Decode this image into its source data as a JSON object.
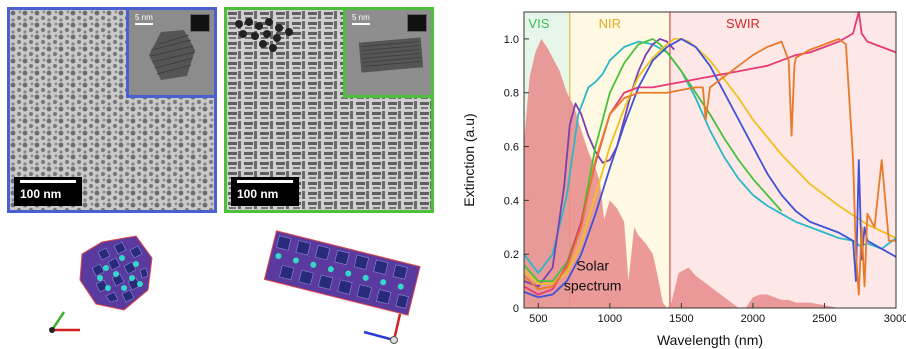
{
  "panels": {
    "left_tem": {
      "scale_main": "100 nm",
      "scale_inset": "5 nm",
      "border_color": "#4a5fd0"
    },
    "right_tem": {
      "scale_main": "100 nm",
      "scale_inset": "5 nm",
      "border_color": "#4cc03a"
    }
  },
  "chart_data": {
    "type": "line",
    "xlabel": "Wavelength (nm)",
    "ylabel": "Extinction (a.u)",
    "xlim": [
      400,
      3000
    ],
    "ylim": [
      0,
      1.1
    ],
    "x_ticks": [
      500,
      1000,
      1500,
      2000,
      2500,
      3000
    ],
    "y_ticks": [
      0,
      0.2,
      0.4,
      0.6,
      0.8,
      1.0
    ],
    "regions": [
      {
        "label": "VIS",
        "x_range": [
          400,
          720
        ],
        "fill": "#e6f7ea",
        "text_color": "#3cba55"
      },
      {
        "label": "NIR",
        "x_range": [
          720,
          1420
        ],
        "fill": "#fff8e2",
        "text_color": "#e0b020"
      },
      {
        "label": "SWIR",
        "x_range": [
          1420,
          3000
        ],
        "fill": "#fde7e7",
        "text_color": "#d12a2a"
      }
    ],
    "annotation": {
      "text_line1": "Solar",
      "text_line2": "spectrum",
      "color": "#c0282e",
      "x": 880,
      "y": 0.08
    },
    "solar_spectrum": {
      "color": "#e88a8a",
      "x": [
        400,
        440,
        480,
        520,
        560,
        600,
        650,
        700,
        750,
        800,
        850,
        900,
        930,
        960,
        1000,
        1050,
        1100,
        1130,
        1170,
        1200,
        1250,
        1300,
        1330,
        1370,
        1400,
        1430,
        1480,
        1550,
        1600,
        1650,
        1700,
        1750,
        1800,
        1850,
        1900,
        1950,
        2000,
        2050,
        2100,
        2150,
        2200,
        2250,
        2300,
        2400,
        2500,
        2600
      ],
      "y": [
        0.62,
        0.86,
        0.95,
        1.0,
        0.97,
        0.93,
        0.88,
        0.8,
        0.75,
        0.66,
        0.58,
        0.52,
        0.47,
        0.33,
        0.4,
        0.37,
        0.32,
        0.1,
        0.3,
        0.27,
        0.24,
        0.2,
        0.13,
        0.02,
        0.0,
        0.02,
        0.13,
        0.15,
        0.12,
        0.1,
        0.08,
        0.06,
        0.04,
        0.02,
        0.0,
        0.0,
        0.04,
        0.05,
        0.05,
        0.04,
        0.03,
        0.03,
        0.02,
        0.02,
        0.01,
        0.0
      ]
    },
    "series": [
      {
        "color": "#2ab8c8",
        "x": [
          400,
          500,
          600,
          700,
          780,
          850,
          900,
          950,
          1000,
          1100,
          1200,
          1300,
          1400,
          1500,
          1600,
          1700,
          1800,
          1900,
          2000,
          2100,
          2200,
          2300,
          2400,
          2500,
          2600,
          2700,
          2750,
          2800,
          2900,
          3000
        ],
        "y": [
          0.2,
          0.13,
          0.2,
          0.42,
          0.72,
          0.82,
          0.84,
          0.87,
          0.92,
          0.97,
          0.99,
          0.98,
          0.95,
          0.88,
          0.78,
          0.66,
          0.56,
          0.48,
          0.42,
          0.38,
          0.35,
          0.32,
          0.3,
          0.28,
          0.26,
          0.25,
          0.23,
          0.24,
          0.22,
          0.26
        ]
      },
      {
        "color": "#7a3fb0",
        "x": [
          400,
          500,
          600,
          680,
          720,
          760,
          800,
          850,
          900,
          950,
          1000,
          1050,
          1100,
          1150,
          1200,
          1250,
          1300,
          1350,
          1400,
          1450
        ],
        "y": [
          0.1,
          0.08,
          0.15,
          0.45,
          0.68,
          0.76,
          0.72,
          0.64,
          0.58,
          0.54,
          0.55,
          0.6,
          0.7,
          0.8,
          0.88,
          0.94,
          0.98,
          1.0,
          0.99,
          0.96
        ]
      },
      {
        "color": "#46c23a",
        "x": [
          400,
          500,
          600,
          700,
          800,
          900,
          1000,
          1100,
          1200,
          1300,
          1350,
          1400,
          1500,
          1600,
          1700,
          1800,
          1900,
          2000,
          2100,
          2200
        ],
        "y": [
          0.16,
          0.1,
          0.1,
          0.17,
          0.32,
          0.6,
          0.8,
          0.91,
          0.98,
          1.0,
          0.98,
          0.95,
          0.88,
          0.8,
          0.72,
          0.63,
          0.55,
          0.48,
          0.42,
          0.36
        ]
      },
      {
        "color": "#f0c020",
        "x": [
          400,
          500,
          600,
          700,
          800,
          900,
          1000,
          1100,
          1200,
          1300,
          1400,
          1450,
          1500,
          1550,
          1600,
          1700,
          1800,
          1900,
          2000,
          2200,
          2400,
          2600,
          2800,
          3000
        ],
        "y": [
          0.14,
          0.09,
          0.09,
          0.13,
          0.24,
          0.42,
          0.6,
          0.74,
          0.86,
          0.93,
          0.98,
          1.0,
          1.0,
          0.99,
          0.97,
          0.92,
          0.85,
          0.78,
          0.7,
          0.57,
          0.46,
          0.38,
          0.31,
          0.26
        ]
      },
      {
        "color": "#e63a78",
        "x": [
          400,
          500,
          600,
          700,
          800,
          900,
          1000,
          1100,
          1200,
          1300,
          1400,
          1500,
          1600,
          1700,
          1800,
          1900,
          2000,
          2100,
          2200,
          2300,
          2400,
          2500,
          2600,
          2700,
          2740,
          2760,
          2800,
          2900,
          3000
        ],
        "y": [
          0.08,
          0.05,
          0.07,
          0.16,
          0.32,
          0.54,
          0.72,
          0.8,
          0.82,
          0.82,
          0.83,
          0.84,
          0.85,
          0.86,
          0.87,
          0.88,
          0.89,
          0.9,
          0.92,
          0.94,
          0.95,
          0.97,
          0.99,
          1.02,
          1.1,
          1.02,
          0.99,
          0.97,
          0.95
        ]
      },
      {
        "color": "#4052d8",
        "x": [
          400,
          500,
          600,
          700,
          800,
          900,
          1000,
          1100,
          1200,
          1300,
          1400,
          1500,
          1600,
          1700,
          1800,
          1900,
          2000,
          2100,
          2200,
          2300,
          2400,
          2500,
          2600,
          2700,
          2720,
          2740,
          2760,
          2780,
          2800,
          2900,
          3000
        ],
        "y": [
          0.06,
          0.04,
          0.05,
          0.1,
          0.2,
          0.35,
          0.52,
          0.68,
          0.82,
          0.92,
          0.97,
          1.0,
          0.97,
          0.9,
          0.8,
          0.7,
          0.6,
          0.5,
          0.42,
          0.36,
          0.32,
          0.3,
          0.28,
          0.25,
          0.1,
          0.55,
          0.18,
          0.3,
          0.25,
          0.22,
          0.19
        ]
      },
      {
        "color": "#e87a2a",
        "x": [
          400,
          500,
          600,
          700,
          800,
          900,
          1000,
          1100,
          1200,
          1300,
          1400,
          1500,
          1600,
          1650,
          1670,
          1700,
          1800,
          1900,
          2000,
          2100,
          2200,
          2250,
          2270,
          2290,
          2300,
          2400,
          2500,
          2550,
          2600,
          2650,
          2700,
          2720,
          2740,
          2760,
          2780,
          2800,
          2850,
          2900,
          2950,
          3000
        ],
        "y": [
          0.12,
          0.07,
          0.08,
          0.15,
          0.3,
          0.55,
          0.72,
          0.78,
          0.8,
          0.8,
          0.8,
          0.81,
          0.82,
          0.82,
          0.7,
          0.82,
          0.86,
          0.9,
          0.94,
          0.97,
          0.99,
          0.92,
          0.64,
          0.9,
          0.93,
          0.96,
          0.98,
          0.99,
          1.0,
          0.98,
          0.55,
          0.2,
          0.05,
          0.3,
          0.08,
          0.35,
          0.3,
          0.55,
          0.25,
          0.25
        ]
      }
    ]
  }
}
